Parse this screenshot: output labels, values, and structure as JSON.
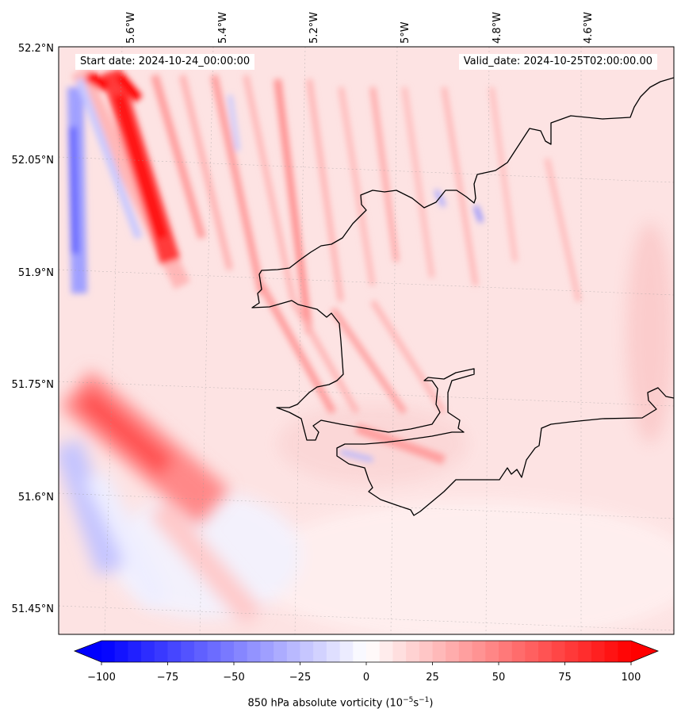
{
  "header": {
    "start_date": "Start date: 2024-10-24_00:00:00",
    "valid_date": "Valid_date: 2024-10-25T02:00:00.00"
  },
  "axes": {
    "lat_labels": [
      "52.2°N",
      "52.05°N",
      "51.9°N",
      "51.75°N",
      "51.6°N",
      "51.45°N"
    ],
    "lon_labels": [
      "5.6°W",
      "5.4°W",
      "5.2°W",
      "5°W",
      "4.8°W",
      "4.6°W"
    ]
  },
  "colorbar": {
    "tick_labels": [
      "−100",
      "−75",
      "−50",
      "−25",
      "0",
      "25",
      "50",
      "75",
      "100"
    ],
    "title": "850 hPa absolute vorticity (10⁻⁵s⁻¹)",
    "title_main": "850 hPa absolute vorticity (10",
    "title_exp1": "−5",
    "title_mid": "s",
    "title_exp2": "−1",
    "title_end": ")",
    "min": -100,
    "max": 100,
    "colors": {
      "negative": "#0000ff",
      "zero": "#ffffff",
      "positive": "#ff0000"
    }
  }
}
